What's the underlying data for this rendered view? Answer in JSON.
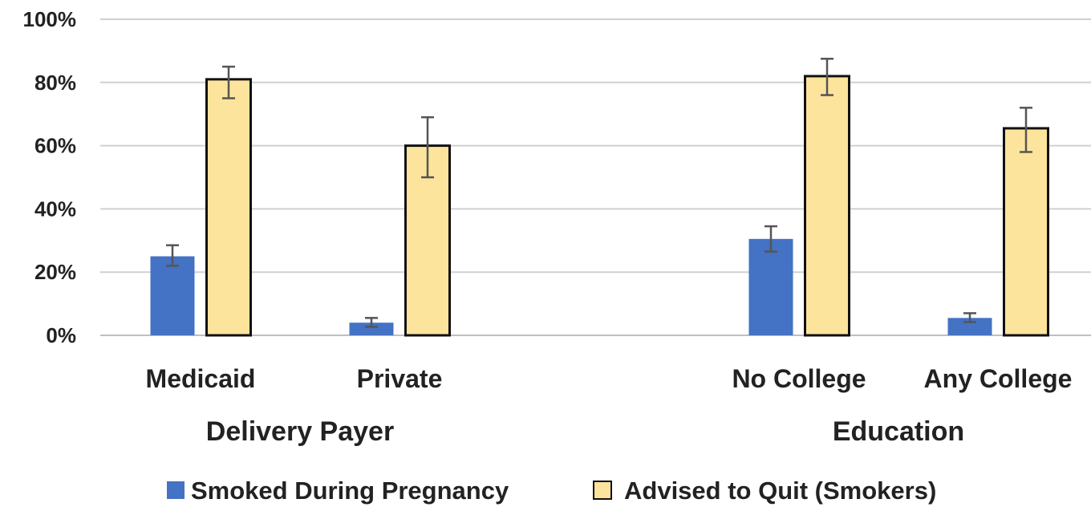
{
  "chart_data": {
    "type": "bar",
    "categories": [
      "Medicaid",
      "Private",
      "No College",
      "Any College"
    ],
    "groups": [
      {
        "label": "Delivery Payer",
        "categories": [
          "Medicaid",
          "Private"
        ]
      },
      {
        "label": "Education",
        "categories": [
          "No College",
          "Any College"
        ]
      }
    ],
    "series": [
      {
        "name": "Smoked During Pregnancy",
        "color": "#4472c4",
        "values": [
          25,
          4,
          30.5,
          5.5
        ],
        "error_low": [
          22,
          2.7,
          26.5,
          4.2
        ],
        "error_high": [
          28.5,
          5.5,
          34.5,
          7
        ]
      },
      {
        "name": "Advised to Quit (Smokers)",
        "color": "#fde49c",
        "values": [
          81,
          60,
          82,
          65.5
        ],
        "error_low": [
          75,
          50,
          76,
          58
        ],
        "error_high": [
          85,
          69,
          87.5,
          72
        ]
      }
    ],
    "y_ticks": [
      "0%",
      "20%",
      "40%",
      "60%",
      "80%",
      "100%"
    ],
    "ylim": [
      0,
      100
    ],
    "grid": true,
    "legend_position": "bottom",
    "title": "",
    "xlabel": "",
    "ylabel": ""
  }
}
